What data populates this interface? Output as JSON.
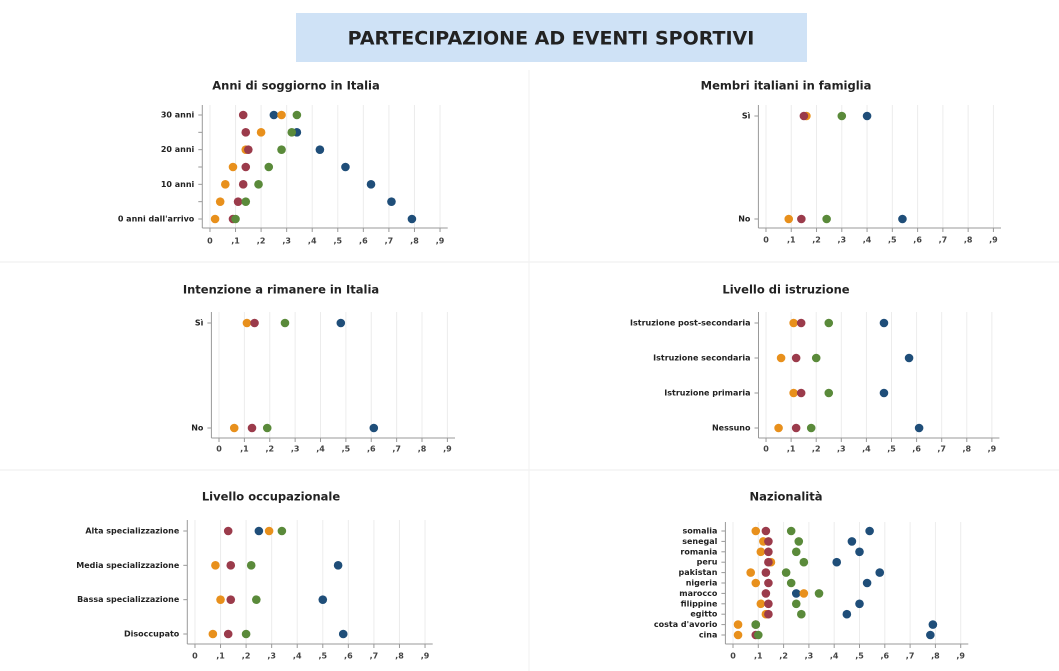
{
  "header": {
    "title": "PARTECIPAZIONE AD EVENTI SPORTIVI"
  },
  "chart_data": [
    {
      "type": "dot",
      "title": "Anni di soggiorno in Italia",
      "categories": [
        "30 anni",
        null,
        "20 anni",
        null,
        "10 anni",
        null,
        "0 anni dall'arrivo"
      ],
      "series": [
        {
          "color": "#1f4e79",
          "values": [
            0.25,
            0.34,
            0.43,
            0.53,
            0.63,
            0.71,
            0.79
          ]
        },
        {
          "color": "#e8901c",
          "values": [
            0.28,
            0.2,
            0.14,
            0.09,
            0.06,
            0.04,
            0.02
          ]
        },
        {
          "color": "#9b3b4b",
          "values": [
            0.13,
            0.14,
            0.15,
            0.14,
            0.13,
            0.11,
            0.09
          ]
        },
        {
          "color": "#5a8a3a",
          "values": [
            0.34,
            0.32,
            0.28,
            0.23,
            0.19,
            0.14,
            0.1
          ]
        }
      ],
      "xlim": [
        -0.03,
        0.93
      ],
      "xticks": [
        0,
        {
          "value": 0.1,
          "label": ",1"
        },
        {
          "value": 0.2,
          "label": ",2"
        },
        {
          "value": 0.3,
          "label": ",3"
        },
        {
          "value": 0.4,
          "label": ",4"
        },
        {
          "value": 0.5,
          "label": ",5"
        },
        {
          "value": 0.6,
          "label": ",6"
        },
        {
          "value": 0.7,
          "label": ",7"
        },
        {
          "value": 0.8,
          "label": ",8"
        },
        {
          "value": 0.9,
          "label": ",9"
        }
      ],
      "grid": true
    },
    {
      "type": "dot",
      "title": "Membri italiani in famiglia",
      "categories": [
        "Sì",
        "No"
      ],
      "series": [
        {
          "color": "#1f4e79",
          "values": [
            0.4,
            0.54
          ]
        },
        {
          "color": "#e8901c",
          "values": [
            0.16,
            0.09
          ]
        },
        {
          "color": "#9b3b4b",
          "values": [
            0.15,
            0.14
          ]
        },
        {
          "color": "#5a8a3a",
          "values": [
            0.3,
            0.24
          ]
        }
      ],
      "xlim": [
        -0.03,
        0.93
      ],
      "xticks": [
        0,
        {
          "value": 0.1,
          "label": ",1"
        },
        {
          "value": 0.2,
          "label": ",2"
        },
        {
          "value": 0.3,
          "label": ",3"
        },
        {
          "value": 0.4,
          "label": ",4"
        },
        {
          "value": 0.5,
          "label": ",5"
        },
        {
          "value": 0.6,
          "label": ",6"
        },
        {
          "value": 0.7,
          "label": ",7"
        },
        {
          "value": 0.8,
          "label": ",8"
        },
        {
          "value": 0.9,
          "label": ",9"
        }
      ],
      "grid": true
    },
    {
      "type": "dot",
      "title": "Intenzione a rimanere in Italia",
      "categories": [
        "Sì",
        "No"
      ],
      "series": [
        {
          "color": "#1f4e79",
          "values": [
            0.48,
            0.61
          ]
        },
        {
          "color": "#e8901c",
          "values": [
            0.11,
            0.06
          ]
        },
        {
          "color": "#9b3b4b",
          "values": [
            0.14,
            0.13
          ]
        },
        {
          "color": "#5a8a3a",
          "values": [
            0.26,
            0.19
          ]
        }
      ],
      "xlim": [
        -0.03,
        0.93
      ],
      "xticks": [
        0,
        {
          "value": 0.1,
          "label": ",1"
        },
        {
          "value": 0.2,
          "label": ",2"
        },
        {
          "value": 0.3,
          "label": ",3"
        },
        {
          "value": 0.4,
          "label": ",4"
        },
        {
          "value": 0.5,
          "label": ",5"
        },
        {
          "value": 0.6,
          "label": ",6"
        },
        {
          "value": 0.7,
          "label": ",7"
        },
        {
          "value": 0.8,
          "label": ",8"
        },
        {
          "value": 0.9,
          "label": ",9"
        }
      ],
      "grid": true
    },
    {
      "type": "dot",
      "title": "Livello di istruzione",
      "categories": [
        "Istruzione post-secondaria",
        "Istruzione secondaria",
        "Istruzione primaria",
        "Nessuno"
      ],
      "series": [
        {
          "color": "#1f4e79",
          "values": [
            0.47,
            0.57,
            0.47,
            0.61
          ]
        },
        {
          "color": "#e8901c",
          "values": [
            0.11,
            0.06,
            0.11,
            0.05
          ]
        },
        {
          "color": "#9b3b4b",
          "values": [
            0.14,
            0.12,
            0.14,
            0.12
          ]
        },
        {
          "color": "#5a8a3a",
          "values": [
            0.25,
            0.2,
            0.25,
            0.18
          ]
        }
      ],
      "xlim": [
        -0.03,
        0.93
      ],
      "xticks": [
        0,
        {
          "value": 0.1,
          "label": ",1"
        },
        {
          "value": 0.2,
          "label": ",2"
        },
        {
          "value": 0.3,
          "label": ",3"
        },
        {
          "value": 0.4,
          "label": ",4"
        },
        {
          "value": 0.5,
          "label": ",5"
        },
        {
          "value": 0.6,
          "label": ",6"
        },
        {
          "value": 0.7,
          "label": ",7"
        },
        {
          "value": 0.8,
          "label": ",8"
        },
        {
          "value": 0.9,
          "label": ",9"
        }
      ],
      "grid": true
    },
    {
      "type": "dot",
      "title": "Livello occupazionale",
      "categories": [
        "Alta specializzazione",
        "Media specializzazione",
        "Bassa specializzazione",
        "Disoccupato"
      ],
      "series": [
        {
          "color": "#1f4e79",
          "values": [
            0.25,
            0.56,
            0.5,
            0.58
          ]
        },
        {
          "color": "#e8901c",
          "values": [
            0.29,
            0.08,
            0.1,
            0.07
          ]
        },
        {
          "color": "#9b3b4b",
          "values": [
            0.13,
            0.14,
            0.14,
            0.13
          ]
        },
        {
          "color": "#5a8a3a",
          "values": [
            0.34,
            0.22,
            0.24,
            0.2
          ]
        }
      ],
      "xlim": [
        -0.03,
        0.93
      ],
      "xticks": [
        0,
        {
          "value": 0.1,
          "label": ",1"
        },
        {
          "value": 0.2,
          "label": ",2"
        },
        {
          "value": 0.3,
          "label": ",3"
        },
        {
          "value": 0.4,
          "label": ",4"
        },
        {
          "value": 0.5,
          "label": ",5"
        },
        {
          "value": 0.6,
          "label": ",6"
        },
        {
          "value": 0.7,
          "label": ",7"
        },
        {
          "value": 0.8,
          "label": ",8"
        },
        {
          "value": 0.9,
          "label": ",9"
        }
      ],
      "grid": true
    },
    {
      "type": "dot",
      "title": "Nazionalità",
      "categories": [
        "somalia",
        "senegal",
        "romania",
        "peru",
        "pakistan",
        "nigeria",
        "marocco",
        "filippine",
        "egitto",
        "costa d'avorio",
        "cina"
      ],
      "series": [
        {
          "color": "#1f4e79",
          "values": [
            0.54,
            0.47,
            0.5,
            0.41,
            0.58,
            0.53,
            0.25,
            0.5,
            0.45,
            0.79,
            0.78
          ]
        },
        {
          "color": "#e8901c",
          "values": [
            0.09,
            0.12,
            0.11,
            0.15,
            0.07,
            0.09,
            0.28,
            0.11,
            0.13,
            0.02,
            0.02
          ]
        },
        {
          "color": "#9b3b4b",
          "values": [
            0.13,
            0.14,
            0.14,
            0.14,
            0.13,
            0.14,
            0.13,
            0.14,
            0.14,
            0.09,
            0.09
          ]
        },
        {
          "color": "#5a8a3a",
          "values": [
            0.23,
            0.26,
            0.25,
            0.28,
            0.21,
            0.23,
            0.34,
            0.25,
            0.27,
            0.09,
            0.1
          ]
        }
      ],
      "xlim": [
        -0.03,
        0.93
      ],
      "xticks": [
        0,
        {
          "value": 0.1,
          "label": ",1"
        },
        {
          "value": 0.2,
          "label": ",2"
        },
        {
          "value": 0.3,
          "label": ",3"
        },
        {
          "value": 0.4,
          "label": ",4"
        },
        {
          "value": 0.5,
          "label": ",5"
        },
        {
          "value": 0.6,
          "label": ",6"
        },
        {
          "value": 0.7,
          "label": ",7"
        },
        {
          "value": 0.8,
          "label": ",8"
        },
        {
          "value": 0.9,
          "label": ",9"
        }
      ],
      "grid": true
    }
  ]
}
